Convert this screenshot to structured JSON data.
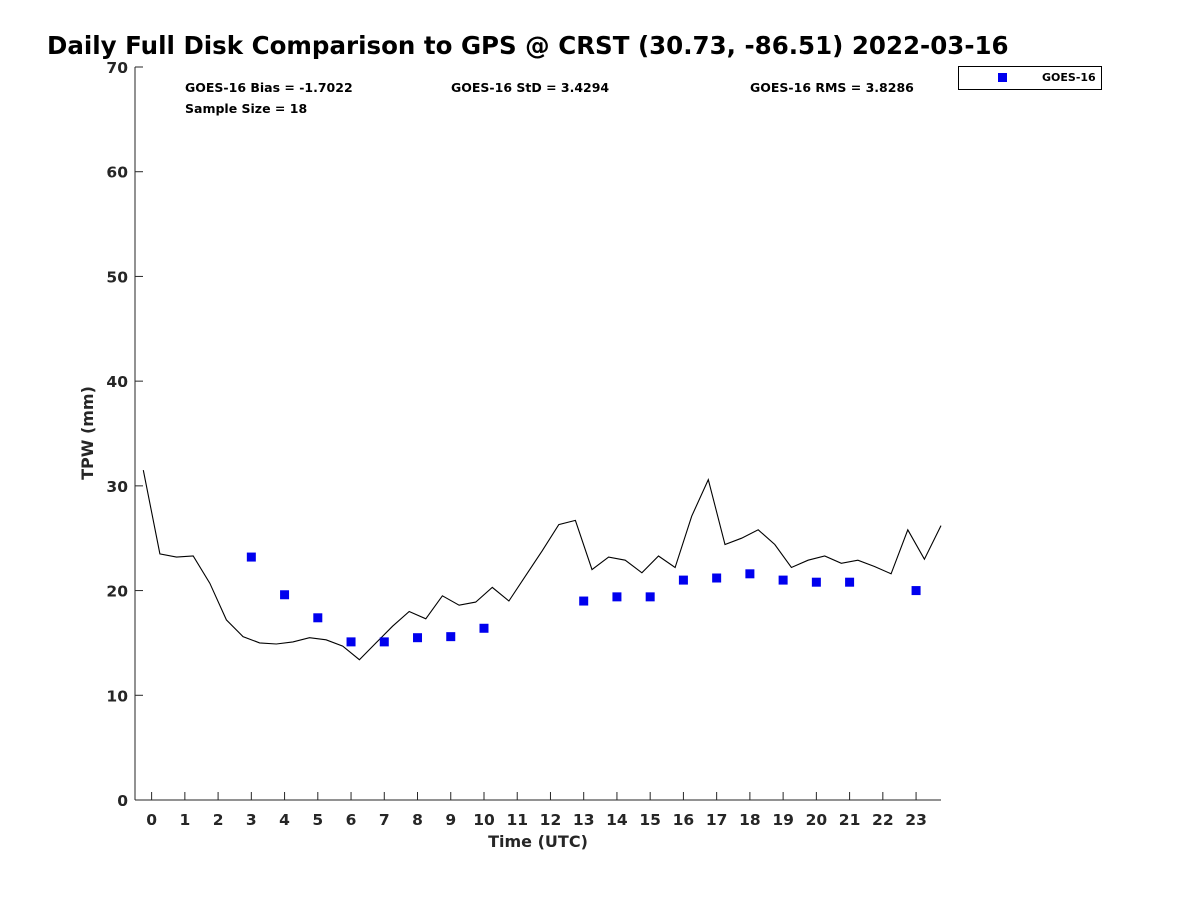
{
  "chart_data": {
    "type": "scatter",
    "title": "Daily Full Disk Comparison to GPS @ CRST (30.73, -86.51) 2022-03-16",
    "xlabel": "Time (UTC)",
    "ylabel": "TPW (mm)",
    "xlim": [
      -0.5,
      23.75
    ],
    "ylim": [
      0,
      70
    ],
    "xticks": [
      0,
      1,
      2,
      3,
      4,
      5,
      6,
      7,
      8,
      9,
      10,
      11,
      12,
      13,
      14,
      15,
      16,
      17,
      18,
      19,
      20,
      21,
      22,
      23
    ],
    "yticks": [
      0,
      10,
      20,
      30,
      40,
      50,
      60,
      70
    ],
    "stats": {
      "bias": "GOES-16 Bias = -1.7022",
      "std": "GOES-16 StD = 3.4294",
      "rms": "GOES-16 RMS = 3.8286",
      "sample": "Sample Size = 18"
    },
    "legend": {
      "position": "top-right-outside",
      "entries": [
        "GOES-16"
      ]
    },
    "colors": {
      "goes": "#0000ee",
      "gps": "#000000"
    },
    "series": [
      {
        "name": "GPS",
        "kind": "line",
        "x": [
          -0.25,
          0.25,
          0.75,
          1.25,
          1.75,
          2.25,
          2.75,
          3.25,
          3.75,
          4.25,
          4.75,
          5.25,
          5.75,
          6.25,
          6.75,
          7.25,
          7.75,
          8.25,
          8.75,
          9.25,
          9.75,
          10.25,
          10.75,
          11.25,
          11.75,
          12.25,
          12.75,
          13.25,
          13.75,
          14.25,
          14.75,
          15.25,
          15.75,
          16.25,
          16.75,
          17.25,
          17.75,
          18.25,
          18.75,
          19.25,
          19.75,
          20.25,
          20.75,
          21.25,
          21.75,
          22.25,
          22.75,
          23.25,
          23.75
        ],
        "y": [
          31.5,
          23.5,
          23.2,
          23.3,
          20.7,
          17.2,
          15.6,
          15.0,
          14.9,
          15.1,
          15.5,
          15.3,
          14.7,
          13.4,
          15.0,
          16.6,
          18.0,
          17.3,
          19.5,
          18.6,
          18.9,
          20.3,
          19.0,
          21.4,
          23.8,
          26.3,
          26.7,
          22.0,
          23.2,
          22.9,
          21.7,
          23.3,
          22.2,
          27.1,
          30.6,
          24.4,
          25.0,
          25.8,
          24.4,
          22.2,
          22.9,
          23.3,
          22.6,
          22.9,
          22.3,
          21.6,
          25.8,
          23.0,
          26.2
        ]
      },
      {
        "name": "GOES-16",
        "kind": "scatter",
        "x": [
          3,
          4,
          5,
          6,
          7,
          8,
          9,
          10,
          13,
          14,
          15,
          16,
          17,
          18,
          19,
          20,
          21,
          23
        ],
        "y": [
          23.2,
          19.6,
          17.4,
          15.1,
          15.1,
          15.5,
          15.6,
          16.4,
          19.0,
          19.4,
          19.4,
          21.0,
          21.2,
          21.6,
          21.0,
          20.8,
          20.8,
          20.0
        ]
      }
    ]
  }
}
